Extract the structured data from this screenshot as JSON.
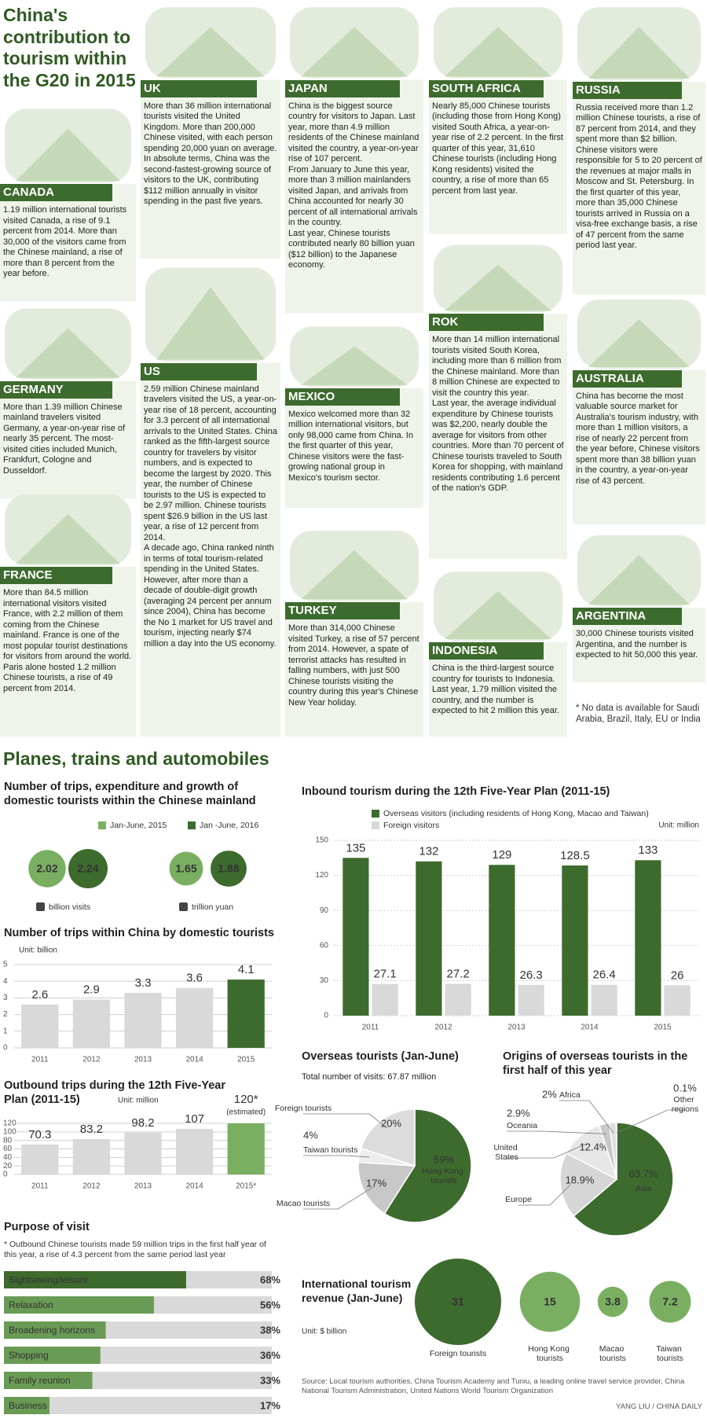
{
  "header": {
    "title": "China's contribution to tourism within the G20 in 2015"
  },
  "countries": [
    {
      "name": "CANADA",
      "paragraphs": [
        "1.19 million international tourists visited Canada, a rise of 9.1 percent from 2014. More than 30,000 of the visitors came from the Chinese mainland, a rise of more than 8 percent from the year before."
      ]
    },
    {
      "name": "UK",
      "paragraphs": [
        "More than 36 million international tourists visited the United Kingdom. More than 200,000 Chinese visited, with each person spending 20,000 yuan on average.",
        "In absolute terms, China was the second-fastest-growing source of visitors to the UK, contributing $112 million annually in visitor spending in the past five years."
      ]
    },
    {
      "name": "JAPAN",
      "paragraphs": [
        "China is the biggest source country for visitors to Japan. Last year, more than 4.9 million residents of the Chinese mainland visited the country, a year-on-year rise of 107 percent.",
        "From January to June this year, more than 3 million mainlanders visited Japan, and arrivals from China accounted for nearly 30 percent of all international arrivals in the country.",
        "Last year, Chinese tourists contributed nearly 80 billion yuan ($12 billion) to the Japanese economy."
      ]
    },
    {
      "name": "SOUTH AFRICA",
      "paragraphs": [
        "Nearly 85,000 Chinese tourists (including those from Hong Kong) visited South Africa, a year-on-year rise of 2.2 percent. In the first quarter of this year, 31,610 Chinese tourists (including Hong Kong residents) visited the country, a rise of more than 65 percent from last year."
      ]
    },
    {
      "name": "RUSSIA",
      "paragraphs": [
        "Russia received more than 1.2 million Chinese tourists, a rise of 87 percent from 2014, and they spent more than $2 billion. Chinese visitors were responsible for 5 to 20 percent of the revenues at major malls in Moscow and St. Petersburg. In the first quarter of this year, more than 35,000 Chinese tourists arrived in Russia on a visa-free exchange basis, a rise of 47 percent from the same period last year."
      ]
    },
    {
      "name": "GERMANY",
      "paragraphs": [
        "More than 1.39 million Chinese mainland travelers visited Germany, a year-on-year rise of nearly 35 percent. The most-visited cities included Munich, Frankfurt, Cologne and Dusseldorf."
      ]
    },
    {
      "name": "US",
      "paragraphs": [
        "2.59 million Chinese mainland travelers visited the US, a year-on-year rise of 18 percent, accounting for 3.3 percent of all international arrivals to the United States. China ranked as the fifth-largest source country for travelers by visitor numbers, and is expected to become the largest by 2020. This year, the number of Chinese tourists to the US is expected to be 2.97 million. Chinese tourists spent $26.9 billion in the US last year, a rise of 12 percent from 2014.",
        "A decade ago, China ranked ninth in terms of total tourism-related spending in the United States. However, after more than a decade of double-digit growth (averaging 24 percent per annum since 2004), China has become the No 1 market for US travel and tourism, injecting nearly $74 million a day into the US economy."
      ]
    },
    {
      "name": "MEXICO",
      "paragraphs": [
        "Mexico welcomed more than 32 million international visitors, but only 98,000 came from China. In the first quarter of this year, Chinese visitors were the fast-growing national group in Mexico's tourism sector."
      ]
    },
    {
      "name": "ROK",
      "paragraphs": [
        "More than 14 million international tourists visited South Korea, including more than 6 million from the Chinese mainland. More than 8 million Chinese are expected to visit the country this year.",
        "Last year, the average individual expenditure by Chinese tourists was $2,200, nearly double the average for visitors from other countries. More than 70 percent of Chinese tourists traveled to South Korea for shopping, with mainland residents contributing 1.6 percent of the nation's GDP."
      ]
    },
    {
      "name": "AUSTRALIA",
      "paragraphs": [
        "China has become the most valuable source market for Australia's tourism industry, with more than 1 million visitors, a rise of nearly 22 percent from the year before, Chinese visitors spent more than 38 billion yuan in the country, a year-on-year rise of 43 percent."
      ]
    },
    {
      "name": "FRANCE",
      "paragraphs": [
        "More than 84.5 million international visitors visited France, with 2.2 million of them coming from the Chinese mainland. France is one of the most popular tourist destinations for visitors from around the world. Paris alone hosted 1.2 million Chinese tourists, a rise of 49 percent from 2014."
      ]
    },
    {
      "name": "TURKEY",
      "paragraphs": [
        "More than 314,000 Chinese visited Turkey, a rise of 57 percent from 2014. However, a spate of terrorist attacks has resulted in falling numbers, with just 500 Chinese tourists visiting the country during this year's Chinese New Year holiday."
      ]
    },
    {
      "name": "INDONESIA",
      "paragraphs": [
        "China is the third-largest source country for tourists to Indonesia. Last year, 1.79 million visited the country, and the number is expected to hit 2 million this year."
      ]
    },
    {
      "name": "ARGENTINA",
      "paragraphs": [
        "30,000 Chinese tourists visited Argentina, and the number is expected to hit 50,000 this year."
      ]
    }
  ],
  "note": "* No data is available for Saudi Arabia, Brazil, Italy, EU or India",
  "section_title": "Planes, trains and automobiles",
  "chart_data": [
    {
      "type": "bubble",
      "title": "Number of trips, expenditure and growth of domestic tourists within the Chinese mainland",
      "categories": [
        "billion visits",
        "trillion yuan"
      ],
      "series": [
        {
          "name": "Jan-June, 2015",
          "color": "#7aaf62",
          "values": [
            2.02,
            1.65
          ]
        },
        {
          "name": "Jan -June, 2016",
          "color": "#3d6b2e",
          "values": [
            2.24,
            1.88
          ]
        }
      ]
    },
    {
      "type": "bar",
      "title": "Number of trips within China by domestic tourists",
      "unit": "Unit: billion",
      "categories": [
        "2011",
        "2012",
        "2013",
        "2014",
        "2015"
      ],
      "values": [
        2.6,
        2.9,
        3.3,
        3.6,
        4.1
      ],
      "colors": [
        "#d9d9d9",
        "#d9d9d9",
        "#d9d9d9",
        "#d9d9d9",
        "#3d6b2e"
      ],
      "ylim": [
        0,
        5
      ],
      "yticks": [
        0,
        1,
        2,
        3,
        4,
        5
      ],
      "grid": true
    },
    {
      "type": "bar",
      "title": "Outbound trips during the 12th Five-Year Plan (2011-15)",
      "unit": "Unit: million",
      "categories": [
        "2011",
        "2012",
        "2013",
        "2014",
        "2015*"
      ],
      "values": [
        70.3,
        83.2,
        98.2,
        107,
        120
      ],
      "value_labels": [
        "70.3",
        "83.2",
        "98.2",
        "107",
        "120*"
      ],
      "annotation": "(estimated)",
      "colors": [
        "#d9d9d9",
        "#d9d9d9",
        "#d9d9d9",
        "#d9d9d9",
        "#7aaf62"
      ],
      "ylim": [
        0,
        130
      ],
      "yticks": [
        0,
        20,
        40,
        60,
        80,
        100,
        120
      ],
      "grid": true
    },
    {
      "type": "hbar",
      "title": "Purpose of visit",
      "note": "* Outbound Chinese tourists made 59 million trips in the first half year of this year, a rise of 4.3 percent from the same period last year",
      "categories": [
        "Sightseeing/leisure",
        "Relaxation",
        "Broadening horizons",
        "Shopping",
        "Family reunion",
        "Business"
      ],
      "values": [
        68,
        56,
        38,
        36,
        33,
        17
      ],
      "value_labels": [
        "68%",
        "56%",
        "38%",
        "36%",
        "33%",
        "17%"
      ],
      "colors": [
        "#3d6b2e",
        "#6a9b55",
        "#6a9b55",
        "#6a9b55",
        "#6a9b55",
        "#6a9b55"
      ],
      "xlim": [
        0,
        100
      ]
    },
    {
      "type": "bar",
      "title": "Inbound tourism during the 12th Five-Year Plan (2011-15)",
      "unit": "Unit: million",
      "categories": [
        "2011",
        "2012",
        "2013",
        "2014",
        "2015"
      ],
      "series": [
        {
          "name": "Overseas visitors (including residents of Hong Kong, Macao and Taiwan)",
          "color": "#3d6b2e",
          "values": [
            135,
            132,
            129,
            128.5,
            133
          ]
        },
        {
          "name": "Foreign visitors",
          "color": "#d9d9d9",
          "values": [
            27.1,
            27.2,
            26.3,
            26.4,
            26
          ]
        }
      ],
      "ylim": [
        0,
        150
      ],
      "yticks": [
        0,
        30,
        60,
        90,
        120,
        150
      ],
      "grid": true
    },
    {
      "type": "pie",
      "title": "Overseas tourists (Jan-June)",
      "subtitle": "Total number of visits: 67.87 million",
      "categories": [
        "Hong Kong tourists",
        "Macao tourists",
        "Taiwan tourists",
        "Foreign tourists"
      ],
      "values": [
        59,
        17,
        4,
        20
      ],
      "value_labels": [
        "59%",
        "17%",
        "4%",
        "20%"
      ],
      "colors": [
        "#3d6b2e",
        "#c8c8c8",
        "#ededed",
        "#dcdcdc"
      ]
    },
    {
      "type": "pie",
      "title": "Origins of overseas tourists in the first half of this year",
      "categories": [
        "Asia",
        "Europe",
        "United States",
        "Oceania",
        "Africa",
        "Other regions"
      ],
      "values": [
        63.7,
        18.9,
        12.4,
        2.9,
        2,
        0.1
      ],
      "value_labels": [
        "63.7%",
        "18.9%",
        "12.4%",
        "2.9%",
        "2%",
        "0.1%"
      ],
      "colors": [
        "#3d6b2e",
        "#d6d6d6",
        "#e6e6e6",
        "#c8c8c8",
        "#dedede",
        "#bbbbbb"
      ]
    },
    {
      "type": "bubble",
      "title": "International tourism revenue (Jan-June)",
      "unit": "Unit: $ billion",
      "categories": [
        "Foreign tourists",
        "Hong Kong tourists",
        "Macao tourists",
        "Taiwan tourists"
      ],
      "values": [
        31,
        15,
        3.8,
        7.2
      ],
      "colors": [
        "#3d6b2e",
        "#7aaf62",
        "#7aaf62",
        "#7aaf62"
      ]
    }
  ],
  "source": "Source: Local tourism authorities, China Tourism Academy and Tuniu, a leading online travel service provider, China National Tourism Administration, United Nations World Tourism Organization",
  "credit": "YANG LIU / CHINA DAILY"
}
